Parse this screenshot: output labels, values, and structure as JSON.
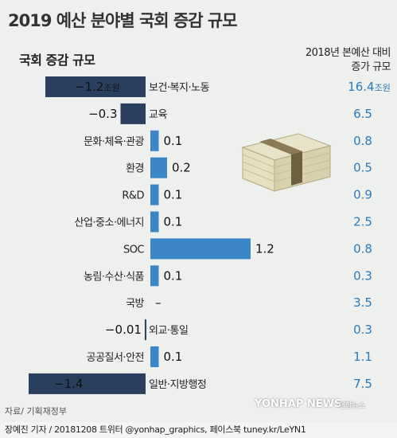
{
  "title": "2019 예산 분야별 국회 증감 규모",
  "source": "자료/ 기획재정부",
  "credit": "장예진 기자 / 20181208 트위터 @yonhap_graphics, 페이스북 tuney.kr/LeYN1",
  "logo_text": "YONHAP NEWS",
  "logo_small": "연합뉴스",
  "colors": {
    "bar": "#3b86c6",
    "bar_dark": "#2a3f5e",
    "label": "#2a7ab8"
  },
  "chart_data": {
    "type": "bar",
    "title": "국회 증감 규모",
    "compare_title_line1": "2018년 본예산 대비",
    "compare_title_line2": "증가 규모",
    "categories": [
      "보건·복지·노동",
      "교육",
      "문화·체육·관광",
      "환경",
      "R&D",
      "산업·중소·에너지",
      "SOC",
      "농림·수산·식품",
      "국방",
      "외교·통일",
      "공공질서·안전",
      "일반·지방행정"
    ],
    "values": [
      -1.2,
      -0.3,
      0.1,
      0.2,
      0.1,
      0.1,
      1.2,
      0.1,
      0,
      -0.01,
      0.1,
      -1.4
    ],
    "value_labels": [
      "−1.2",
      "−0.3",
      "0.1",
      "0.2",
      "0.1",
      "0.1",
      "1.2",
      "0.1",
      "–",
      "−0.01",
      "0.1",
      "−1.4"
    ],
    "value_unit_first": "조원",
    "compare_values": [
      "16.4",
      "6.5",
      "0.8",
      "0.5",
      "0.9",
      "2.5",
      "0.8",
      "0.3",
      "3.5",
      "0.3",
      "1.1",
      "7.5"
    ],
    "compare_unit_first": "조원"
  }
}
